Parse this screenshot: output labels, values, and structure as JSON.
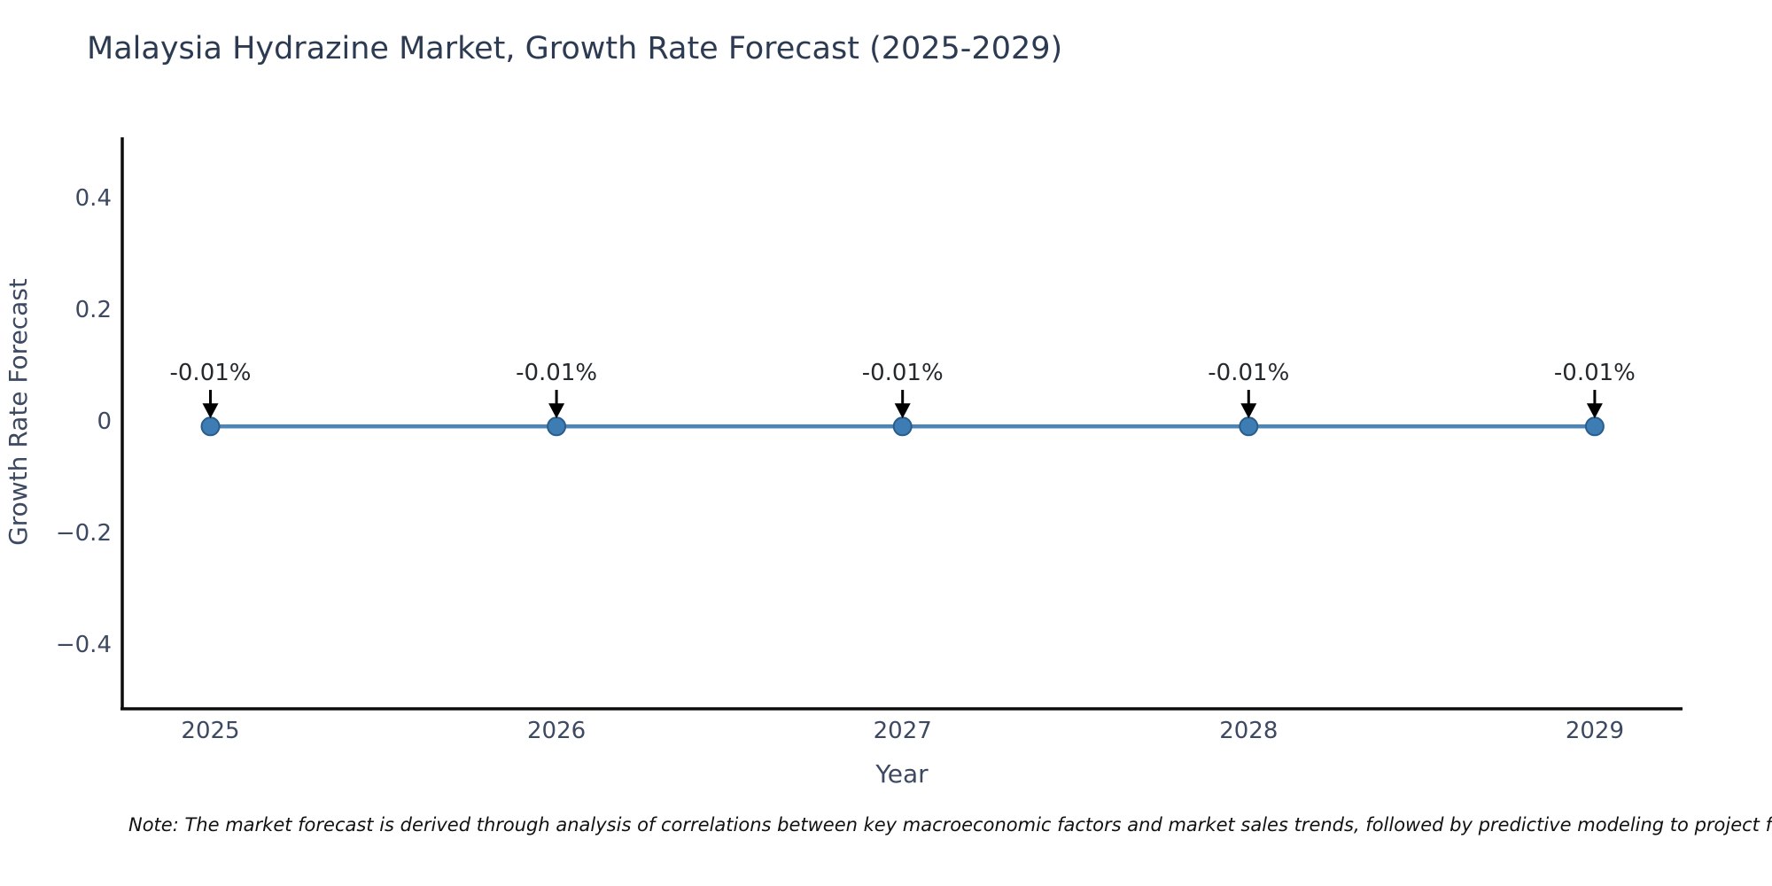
{
  "title": "Malaysia Hydrazine Market, Growth Rate Forecast (2025-2029)",
  "note": "Note: The market forecast is derived through analysis of correlations between key macroeconomic factors and market sales trends, followed by predictive modeling to project future sales.",
  "chart_data": {
    "type": "line",
    "title": "Malaysia Hydrazine Market, Growth Rate Forecast (2025-2029)",
    "xlabel": "Year",
    "ylabel": "Growth Rate Forecast",
    "x": [
      2025,
      2026,
      2027,
      2028,
      2029
    ],
    "x_tick_labels": [
      "2025",
      "2026",
      "2027",
      "2028",
      "2029"
    ],
    "series": [
      {
        "name": "Growth Rate Forecast",
        "values": [
          -0.01,
          -0.01,
          -0.01,
          -0.01,
          -0.01
        ],
        "point_labels": [
          "-0.01%",
          "-0.01%",
          "-0.01%",
          "-0.01%",
          "-0.01%"
        ]
      }
    ],
    "y_ticks": {
      "values": [
        0.4,
        0.2,
        0,
        -0.2,
        -0.4
      ],
      "labels": [
        "0.4",
        "0.2",
        "0",
        "−0.2",
        "−0.4"
      ]
    },
    "ylim": [
      -0.52,
      0.51
    ],
    "grid": false,
    "legend_position": "none",
    "colors": {
      "line": "#4c86b8",
      "marker_fill": "#3d7db3",
      "marker_edge": "#2a5d8c",
      "arrow": "#000000",
      "axis": "#0d0d0d",
      "tick_text": "#3c4961",
      "title_text": "#2c3a52",
      "annotation_text": "#24292e"
    }
  }
}
